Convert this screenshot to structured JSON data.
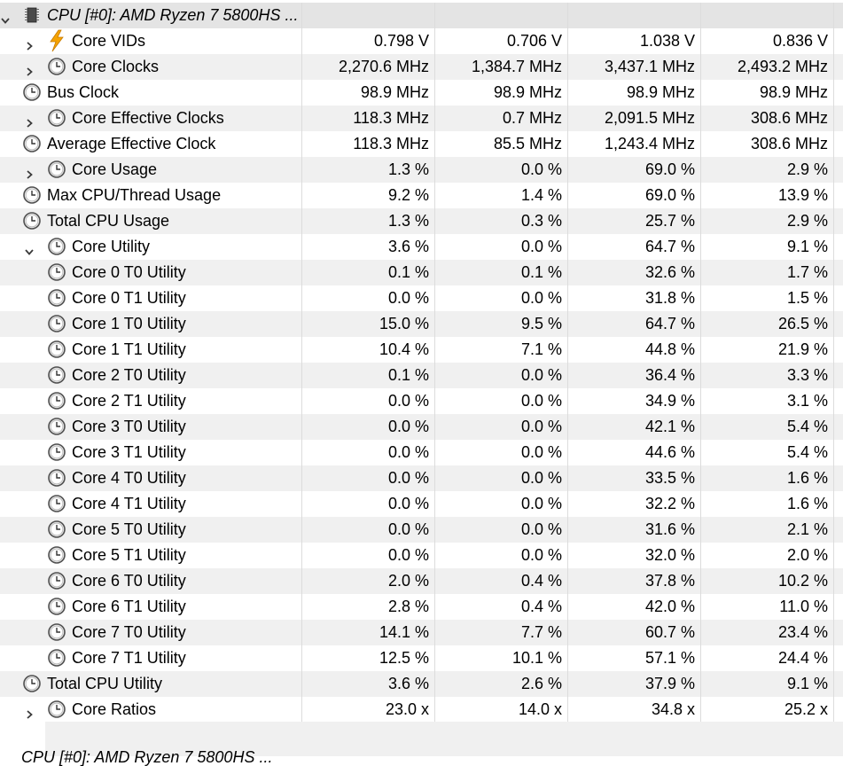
{
  "rows": [
    {
      "label": "CPU [#0]: AMD Ryzen 7 5800HS ...",
      "level": 0,
      "expander": "open",
      "icon": "cpu-chip-icon",
      "header": true,
      "values": [
        "",
        "",
        "",
        ""
      ]
    },
    {
      "label": "Core VIDs",
      "level": 1,
      "expander": "closed",
      "icon": "voltage-bolt-icon",
      "values": [
        "0.798 V",
        "0.706 V",
        "1.038 V",
        "0.836 V"
      ]
    },
    {
      "label": "Core Clocks",
      "level": 1,
      "expander": "closed",
      "icon": "clock-icon",
      "values": [
        "2,270.6 MHz",
        "1,384.7 MHz",
        "3,437.1 MHz",
        "2,493.2 MHz"
      ]
    },
    {
      "label": "Bus Clock",
      "level": 0,
      "expander": "none",
      "icon": "clock-icon",
      "values": [
        "98.9 MHz",
        "98.9 MHz",
        "98.9 MHz",
        "98.9 MHz"
      ]
    },
    {
      "label": "Core Effective Clocks",
      "level": 1,
      "expander": "closed",
      "icon": "clock-icon",
      "values": [
        "118.3 MHz",
        "0.7 MHz",
        "2,091.5 MHz",
        "308.6 MHz"
      ]
    },
    {
      "label": "Average Effective Clock",
      "level": 0,
      "expander": "none",
      "icon": "clock-icon",
      "values": [
        "118.3 MHz",
        "85.5 MHz",
        "1,243.4 MHz",
        "308.6 MHz"
      ]
    },
    {
      "label": "Core Usage",
      "level": 1,
      "expander": "closed",
      "icon": "clock-icon",
      "values": [
        "1.3 %",
        "0.0 %",
        "69.0 %",
        "2.9 %"
      ]
    },
    {
      "label": "Max CPU/Thread Usage",
      "level": 0,
      "expander": "none",
      "icon": "clock-icon",
      "values": [
        "9.2 %",
        "1.4 %",
        "69.0 %",
        "13.9 %"
      ]
    },
    {
      "label": "Total CPU Usage",
      "level": 0,
      "expander": "none",
      "icon": "clock-icon",
      "values": [
        "1.3 %",
        "0.3 %",
        "25.7 %",
        "2.9 %"
      ]
    },
    {
      "label": "Core Utility",
      "level": 1,
      "expander": "open",
      "icon": "clock-icon",
      "values": [
        "3.6 %",
        "0.0 %",
        "64.7 %",
        "9.1 %"
      ]
    },
    {
      "label": "Core 0 T0 Utility",
      "level": 2,
      "expander": "none",
      "icon": "clock-icon",
      "values": [
        "0.1 %",
        "0.1 %",
        "32.6 %",
        "1.7 %"
      ]
    },
    {
      "label": "Core 0 T1 Utility",
      "level": 2,
      "expander": "none",
      "icon": "clock-icon",
      "values": [
        "0.0 %",
        "0.0 %",
        "31.8 %",
        "1.5 %"
      ]
    },
    {
      "label": "Core 1 T0 Utility",
      "level": 2,
      "expander": "none",
      "icon": "clock-icon",
      "values": [
        "15.0 %",
        "9.5 %",
        "64.7 %",
        "26.5 %"
      ]
    },
    {
      "label": "Core 1 T1 Utility",
      "level": 2,
      "expander": "none",
      "icon": "clock-icon",
      "values": [
        "10.4 %",
        "7.1 %",
        "44.8 %",
        "21.9 %"
      ]
    },
    {
      "label": "Core 2 T0 Utility",
      "level": 2,
      "expander": "none",
      "icon": "clock-icon",
      "values": [
        "0.1 %",
        "0.0 %",
        "36.4 %",
        "3.3 %"
      ]
    },
    {
      "label": "Core 2 T1 Utility",
      "level": 2,
      "expander": "none",
      "icon": "clock-icon",
      "values": [
        "0.0 %",
        "0.0 %",
        "34.9 %",
        "3.1 %"
      ]
    },
    {
      "label": "Core 3 T0 Utility",
      "level": 2,
      "expander": "none",
      "icon": "clock-icon",
      "values": [
        "0.0 %",
        "0.0 %",
        "42.1 %",
        "5.4 %"
      ]
    },
    {
      "label": "Core 3 T1 Utility",
      "level": 2,
      "expander": "none",
      "icon": "clock-icon",
      "values": [
        "0.0 %",
        "0.0 %",
        "44.6 %",
        "5.4 %"
      ]
    },
    {
      "label": "Core 4 T0 Utility",
      "level": 2,
      "expander": "none",
      "icon": "clock-icon",
      "values": [
        "0.0 %",
        "0.0 %",
        "33.5 %",
        "1.6 %"
      ]
    },
    {
      "label": "Core 4 T1 Utility",
      "level": 2,
      "expander": "none",
      "icon": "clock-icon",
      "values": [
        "0.0 %",
        "0.0 %",
        "32.2 %",
        "1.6 %"
      ]
    },
    {
      "label": "Core 5 T0 Utility",
      "level": 2,
      "expander": "none",
      "icon": "clock-icon",
      "values": [
        "0.0 %",
        "0.0 %",
        "31.6 %",
        "2.1 %"
      ]
    },
    {
      "label": "Core 5 T1 Utility",
      "level": 2,
      "expander": "none",
      "icon": "clock-icon",
      "values": [
        "0.0 %",
        "0.0 %",
        "32.0 %",
        "2.0 %"
      ]
    },
    {
      "label": "Core 6 T0 Utility",
      "level": 2,
      "expander": "none",
      "icon": "clock-icon",
      "values": [
        "2.0 %",
        "0.4 %",
        "37.8 %",
        "10.2 %"
      ]
    },
    {
      "label": "Core 6 T1 Utility",
      "level": 2,
      "expander": "none",
      "icon": "clock-icon",
      "values": [
        "2.8 %",
        "0.4 %",
        "42.0 %",
        "11.0 %"
      ]
    },
    {
      "label": "Core 7 T0 Utility",
      "level": 2,
      "expander": "none",
      "icon": "clock-icon",
      "values": [
        "14.1 %",
        "7.7 %",
        "60.7 %",
        "23.4 %"
      ]
    },
    {
      "label": "Core 7 T1 Utility",
      "level": 2,
      "expander": "none",
      "icon": "clock-icon",
      "values": [
        "12.5 %",
        "10.1 %",
        "57.1 %",
        "24.4 %"
      ]
    },
    {
      "label": "Total CPU Utility",
      "level": 0,
      "expander": "none",
      "icon": "clock-icon",
      "values": [
        "3.6 %",
        "2.6 %",
        "37.9 %",
        "9.1 %"
      ]
    },
    {
      "label": "Core Ratios",
      "level": 1,
      "expander": "closed",
      "icon": "clock-icon",
      "values": [
        "23.0 x",
        "14.0 x",
        "34.8 x",
        "25.2 x"
      ]
    }
  ],
  "partial_next_group": {
    "label": "CPU [#0]: AMD Ryzen 7 5800HS ...",
    "icon": "cpu-chip-icon"
  },
  "colors": {
    "row_alt": "#f0f0f0",
    "row_header": "#e4e4e4",
    "grid_line": "#dcdcdc",
    "bolt": "#f5a300",
    "clock_rim": "#505050"
  }
}
